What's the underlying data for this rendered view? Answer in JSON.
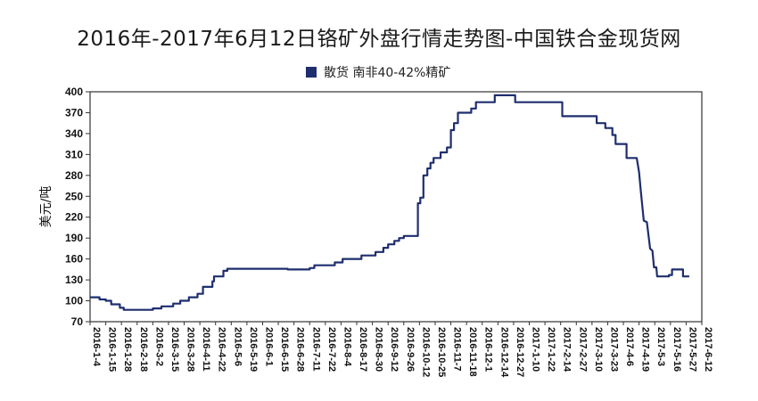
{
  "chart_data": {
    "type": "line",
    "title": "2016年-2017年6月12日铬矿外盘行情走势图-中国铁合金现货网",
    "ylabel": "美元/吨",
    "ylim": [
      70,
      400
    ],
    "y_ticks": [
      "400",
      "370",
      "340",
      "310",
      "280",
      "250",
      "220",
      "190",
      "160",
      "130",
      "100",
      "70"
    ],
    "grid": false,
    "legend_position": "top-center",
    "series": [
      {
        "name": "散货 南非40-42%精矿",
        "color": "#1f2e6e"
      }
    ],
    "x_tick_labels": [
      "2016-1-4",
      "2016-1-15",
      "2016-1-28",
      "2016-2-18",
      "2016-3-2",
      "2016-3-15",
      "2016-3-28",
      "2016-4-11",
      "2016-4-22",
      "2016-5-6",
      "2016-5-19",
      "2016-6-1",
      "2016-6-15",
      "2016-6-28",
      "2016-7-11",
      "2016-7-22",
      "2016-8-4",
      "2016-8-17",
      "2016-8-30",
      "2016-9-12",
      "2016-9-26",
      "2016-10-12",
      "2016-10-25",
      "2016-11-7",
      "2016-11-18",
      "2016-12-1",
      "2016-12-14",
      "2016-12-27",
      "2017-1-10",
      "2017-1-22",
      "2017-2-14",
      "2017-2-27",
      "2017-3-10",
      "2017-3-23",
      "2017-4-6",
      "2017-4-19",
      "2017-5-3",
      "2017-5-16",
      "2017-5-27",
      "2017-6-12"
    ],
    "points": [
      [
        0,
        105
      ],
      [
        0.6,
        105
      ],
      [
        0.6,
        102
      ],
      [
        1.0,
        102
      ],
      [
        1.0,
        100
      ],
      [
        1.35,
        100
      ],
      [
        1.35,
        95
      ],
      [
        1.9,
        95
      ],
      [
        1.9,
        90
      ],
      [
        2.15,
        90
      ],
      [
        2.15,
        87
      ],
      [
        4.0,
        87
      ],
      [
        4.0,
        89
      ],
      [
        4.55,
        89
      ],
      [
        4.55,
        92
      ],
      [
        5.3,
        92
      ],
      [
        5.3,
        96
      ],
      [
        5.75,
        96
      ],
      [
        5.75,
        100
      ],
      [
        6.3,
        100
      ],
      [
        6.3,
        105
      ],
      [
        6.85,
        105
      ],
      [
        6.85,
        110
      ],
      [
        7.2,
        110
      ],
      [
        7.2,
        120
      ],
      [
        7.8,
        120
      ],
      [
        7.8,
        128
      ],
      [
        7.9,
        128
      ],
      [
        7.9,
        135
      ],
      [
        8.5,
        135
      ],
      [
        8.5,
        143
      ],
      [
        8.75,
        143
      ],
      [
        8.75,
        146
      ],
      [
        12.6,
        146
      ],
      [
        12.6,
        145
      ],
      [
        14.0,
        145
      ],
      [
        14.0,
        147
      ],
      [
        14.3,
        147
      ],
      [
        14.3,
        151
      ],
      [
        15.6,
        151
      ],
      [
        15.6,
        155
      ],
      [
        16.1,
        155
      ],
      [
        16.1,
        160
      ],
      [
        17.3,
        160
      ],
      [
        17.3,
        165
      ],
      [
        18.2,
        165
      ],
      [
        18.2,
        170
      ],
      [
        18.7,
        170
      ],
      [
        18.7,
        176
      ],
      [
        19.0,
        176
      ],
      [
        19.0,
        181
      ],
      [
        19.4,
        181
      ],
      [
        19.4,
        186
      ],
      [
        19.7,
        186
      ],
      [
        19.7,
        190
      ],
      [
        20.0,
        190
      ],
      [
        20.0,
        193
      ],
      [
        20.9,
        193
      ],
      [
        20.9,
        240
      ],
      [
        21.05,
        240
      ],
      [
        21.05,
        248
      ],
      [
        21.25,
        248
      ],
      [
        21.25,
        280
      ],
      [
        21.5,
        280
      ],
      [
        21.5,
        290
      ],
      [
        21.7,
        290
      ],
      [
        21.7,
        298
      ],
      [
        21.9,
        298
      ],
      [
        21.9,
        305
      ],
      [
        22.35,
        305
      ],
      [
        22.35,
        313
      ],
      [
        22.75,
        313
      ],
      [
        22.75,
        320
      ],
      [
        23.0,
        320
      ],
      [
        23.0,
        345
      ],
      [
        23.2,
        345
      ],
      [
        23.2,
        355
      ],
      [
        23.45,
        355
      ],
      [
        23.45,
        370
      ],
      [
        24.3,
        370
      ],
      [
        24.3,
        376
      ],
      [
        24.6,
        376
      ],
      [
        24.6,
        385
      ],
      [
        25.8,
        385
      ],
      [
        25.8,
        395
      ],
      [
        27.1,
        395
      ],
      [
        27.1,
        385
      ],
      [
        30.1,
        385
      ],
      [
        30.1,
        365
      ],
      [
        32.3,
        365
      ],
      [
        32.3,
        355
      ],
      [
        32.85,
        355
      ],
      [
        32.85,
        348
      ],
      [
        33.3,
        348
      ],
      [
        33.3,
        338
      ],
      [
        33.5,
        338
      ],
      [
        33.5,
        325
      ],
      [
        34.2,
        325
      ],
      [
        34.2,
        305
      ],
      [
        34.85,
        305
      ],
      [
        35.0,
        285
      ],
      [
        35.1,
        260
      ],
      [
        35.3,
        215
      ],
      [
        35.5,
        213
      ],
      [
        35.7,
        175
      ],
      [
        35.85,
        172
      ],
      [
        35.95,
        148
      ],
      [
        36.1,
        148
      ],
      [
        36.15,
        135
      ],
      [
        36.9,
        135
      ],
      [
        36.9,
        137
      ],
      [
        37.1,
        137
      ],
      [
        37.1,
        145
      ],
      [
        37.8,
        145
      ],
      [
        37.8,
        135
      ],
      [
        38.2,
        135
      ]
    ]
  }
}
